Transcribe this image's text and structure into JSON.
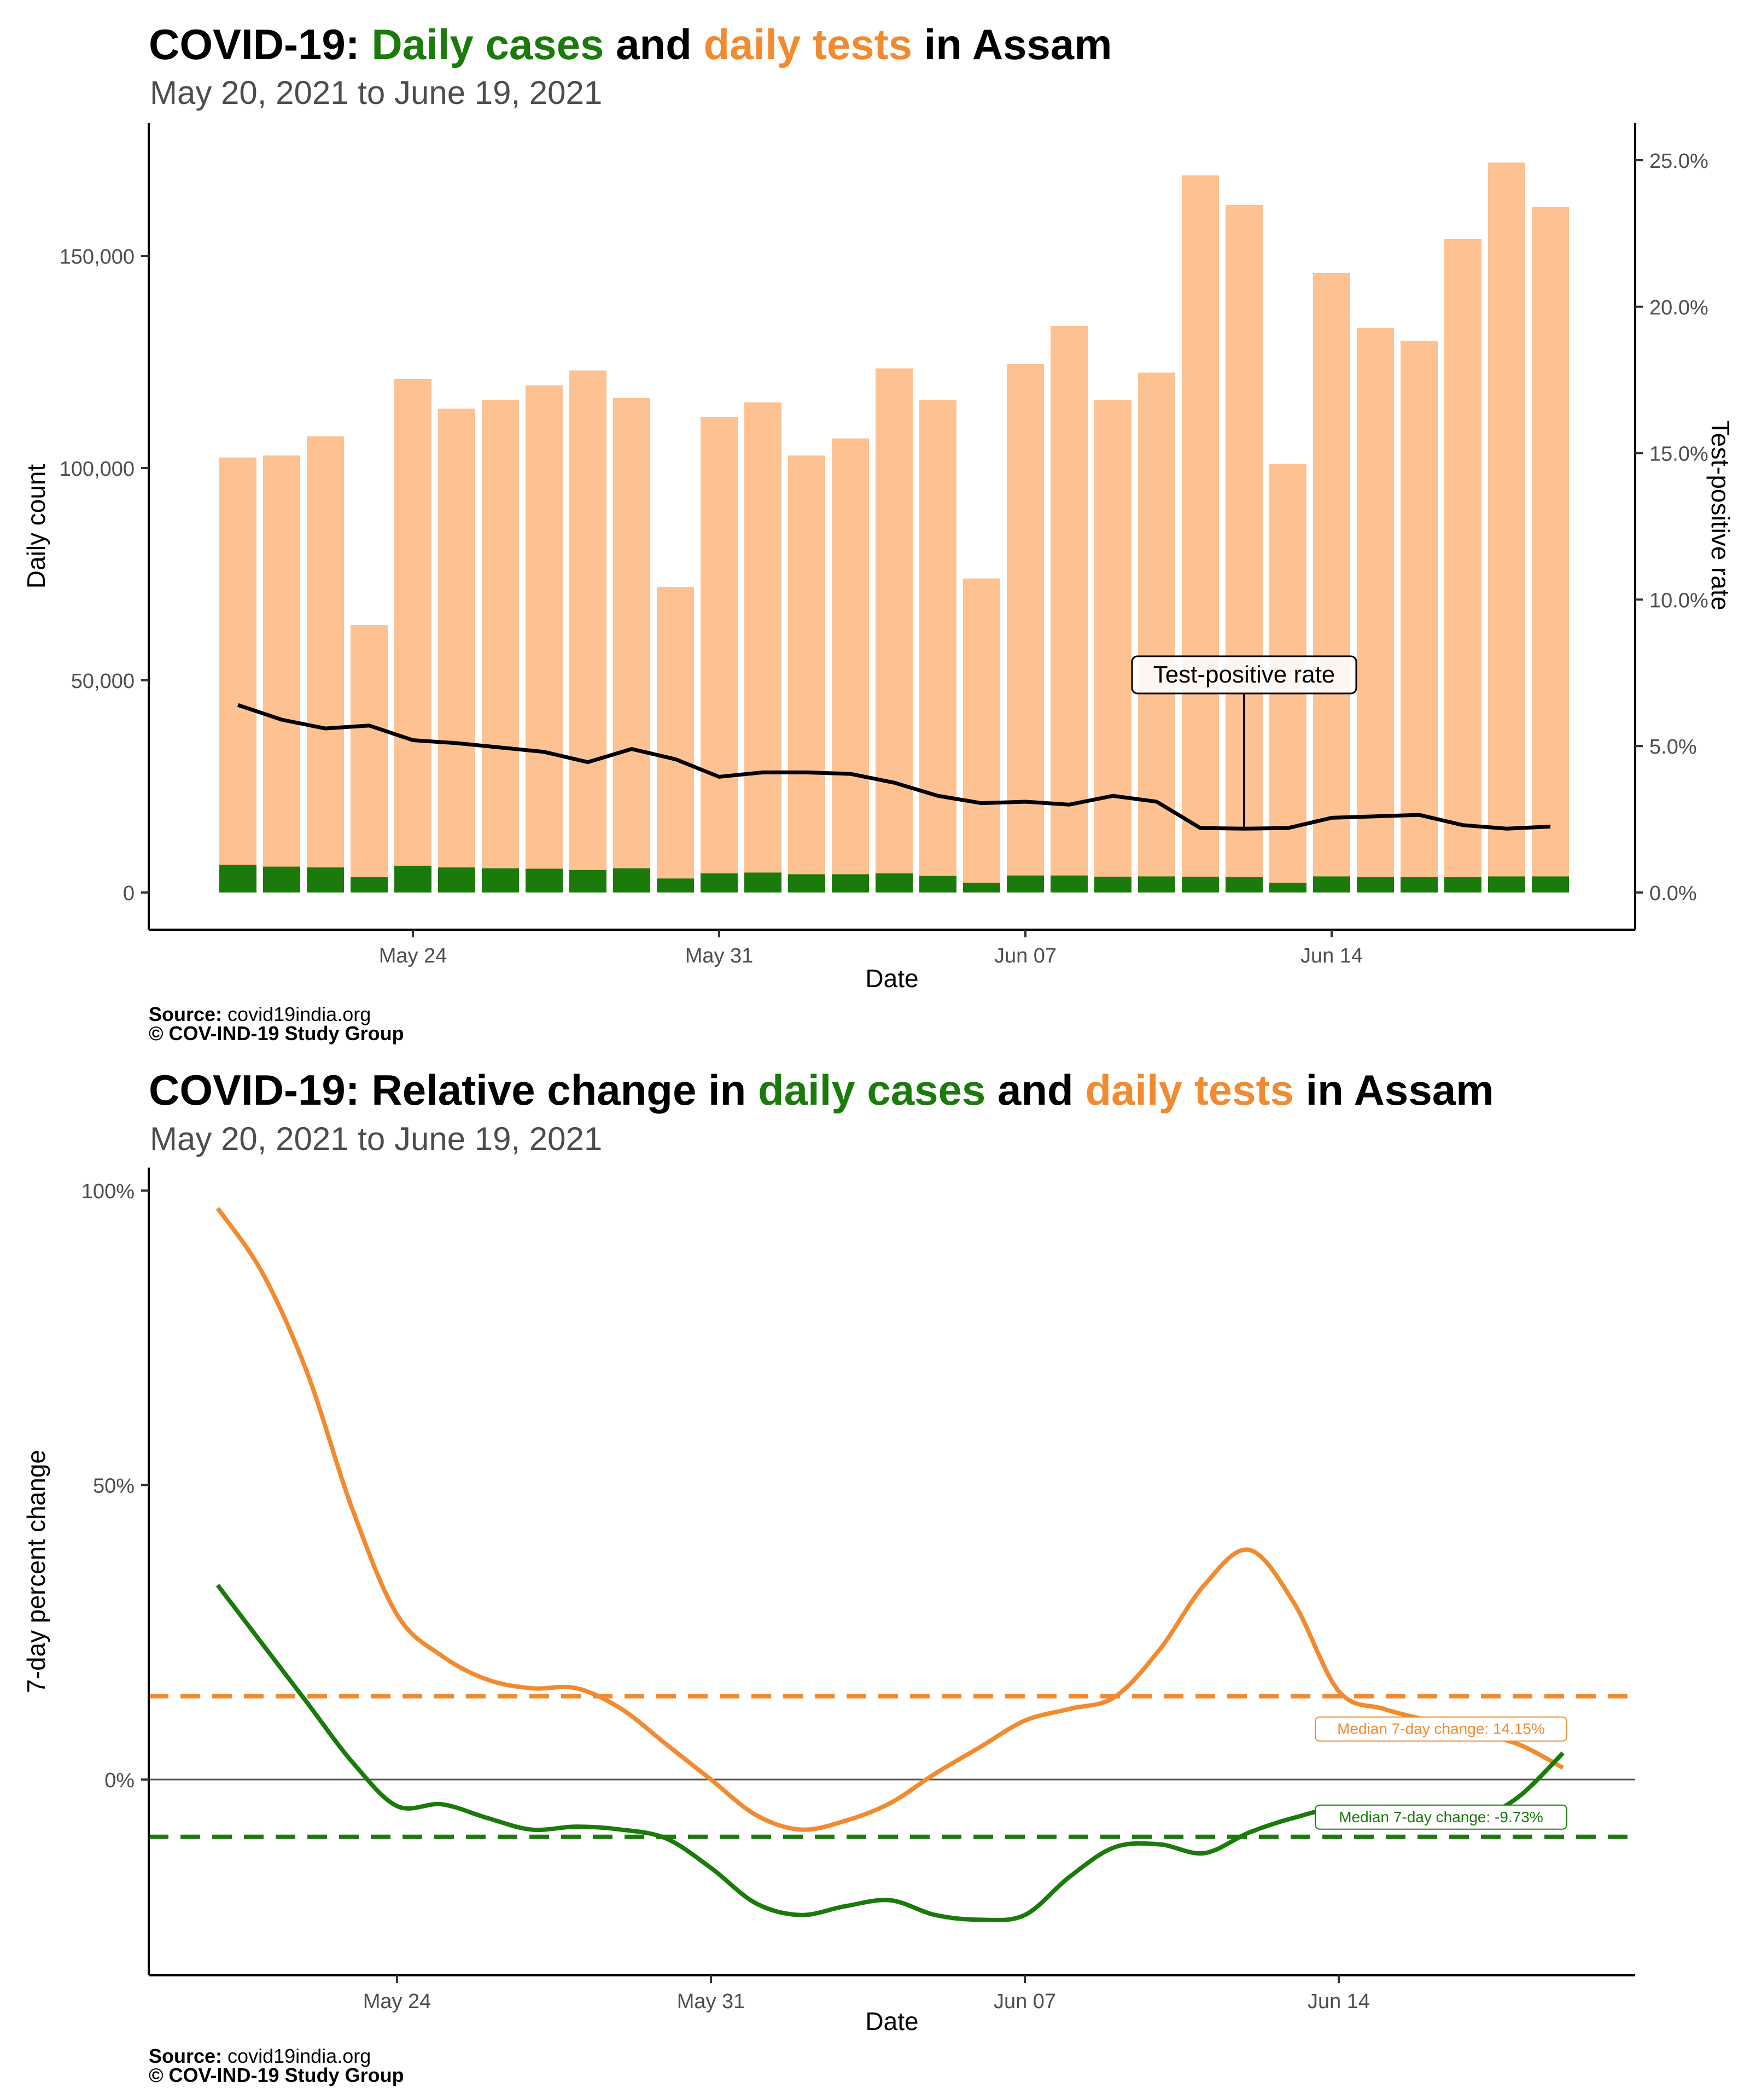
{
  "chart1": {
    "title_prefix": "COVID-19: ",
    "title_cases": "Daily cases",
    "title_mid": " and ",
    "title_tests": "daily tests",
    "title_suffix": " in Assam",
    "subtitle": "May 20, 2021 to June 19, 2021",
    "source_label": "Source:",
    "source_value": " covid19india.org",
    "copyright": "© COV-IND-19 Study Group"
  },
  "chart2": {
    "title_prefix": "COVID-19: Relative change in ",
    "title_cases": "daily cases",
    "title_mid": " and ",
    "title_tests": "daily tests",
    "title_suffix": " in Assam",
    "subtitle": "May 20, 2021 to June 19, 2021",
    "source_label": "Source:",
    "source_value": " covid19india.org",
    "copyright": "© COV-IND-19 Study Group"
  },
  "colors": {
    "cases": "#1a7a0a",
    "tests": "#fdc192",
    "tests_line": "#f28a30",
    "tpr": "#000000"
  },
  "chart_data": [
    {
      "type": "bar",
      "x": [
        "2021-05-20",
        "2021-05-21",
        "2021-05-22",
        "2021-05-23",
        "2021-05-24",
        "2021-05-25",
        "2021-05-26",
        "2021-05-27",
        "2021-05-28",
        "2021-05-29",
        "2021-05-30",
        "2021-05-31",
        "2021-06-01",
        "2021-06-02",
        "2021-06-03",
        "2021-06-04",
        "2021-06-05",
        "2021-06-06",
        "2021-06-07",
        "2021-06-08",
        "2021-06-09",
        "2021-06-10",
        "2021-06-11",
        "2021-06-12",
        "2021-06-13",
        "2021-06-14",
        "2021-06-15",
        "2021-06-16",
        "2021-06-17",
        "2021-06-18",
        "2021-06-19"
      ],
      "series": [
        {
          "values": [
            102500,
            103000,
            107500,
            63000,
            121000,
            114000,
            116000,
            119500,
            123000,
            116500,
            72000,
            112000,
            115500,
            103000,
            107000,
            123500,
            116000,
            74000,
            124500,
            133500,
            116000,
            122500,
            169000,
            162000,
            101000,
            146000,
            133000,
            130000,
            154000,
            172000,
            161500
          ]
        },
        {
          "values": [
            6500,
            6100,
            5900,
            3600,
            6300,
            5900,
            5700,
            5600,
            5300,
            5700,
            3300,
            4500,
            4700,
            4300,
            4300,
            4500,
            3900,
            2300,
            4000,
            4000,
            3700,
            3800,
            3700,
            3600,
            2300,
            3800,
            3600,
            3600,
            3600,
            3800,
            3800
          ]
        },
        {
          "values": [
            6.4,
            5.9,
            5.6,
            5.7,
            5.2,
            5.1,
            4.95,
            4.8,
            4.45,
            4.9,
            4.55,
            3.95,
            4.1,
            4.1,
            4.05,
            3.75,
            3.3,
            3.05,
            3.1,
            3.0,
            3.3,
            3.1,
            2.2,
            2.18,
            2.2,
            2.55,
            2.6,
            2.65,
            2.3,
            2.18,
            2.25
          ]
        }
      ],
      "xlabel": "Date",
      "ylabel": "Daily count",
      "y2label": "Test-positive rate",
      "ylim": [
        0,
        180000
      ],
      "y2lim": [
        0,
        26
      ],
      "yticks": [
        "0",
        "50,000",
        "100,000",
        "150,000"
      ],
      "y2ticks": [
        "0.0%",
        "5.0%",
        "10.0%",
        "15.0%",
        "20.0%",
        "25.0%"
      ],
      "xticks": [
        "May 24",
        "May 31",
        "Jun 07",
        "Jun 14"
      ],
      "annotation": "Test-positive rate",
      "annotation_date": "2021-06-12",
      "grid": false
    },
    {
      "type": "line",
      "x": [
        "2021-05-20",
        "2021-05-21",
        "2021-05-22",
        "2021-05-23",
        "2021-05-24",
        "2021-05-25",
        "2021-05-26",
        "2021-05-27",
        "2021-05-28",
        "2021-05-29",
        "2021-05-30",
        "2021-05-31",
        "2021-06-01",
        "2021-06-02",
        "2021-06-03",
        "2021-06-04",
        "2021-06-05",
        "2021-06-06",
        "2021-06-07",
        "2021-06-08",
        "2021-06-09",
        "2021-06-10",
        "2021-06-11",
        "2021-06-12",
        "2021-06-13",
        "2021-06-14",
        "2021-06-15",
        "2021-06-16",
        "2021-06-17",
        "2021-06-18",
        "2021-06-19"
      ],
      "series": [
        {
          "values": [
            97,
            86,
            69,
            46,
            28,
            21,
            17,
            15.5,
            15.5,
            12,
            6,
            0,
            -6,
            -8.5,
            -7,
            -4,
            1,
            5.5,
            10,
            12,
            14,
            22,
            33,
            39,
            30,
            15,
            12,
            10,
            8,
            6,
            2
          ]
        },
        {
          "values": [
            33,
            23,
            13,
            3,
            -4.5,
            -4.2,
            -6.5,
            -8.5,
            -8,
            -8.5,
            -10,
            -15,
            -21,
            -23,
            -21.5,
            -20.5,
            -23,
            -23.8,
            -23,
            -16.5,
            -11.5,
            -11,
            -12.5,
            -9,
            -6.5,
            -5,
            -7.5,
            -8,
            -7,
            -3,
            4.5
          ]
        }
      ],
      "xlabel": "Date",
      "ylabel": "7-day percent change",
      "ylim": [
        -26,
        102
      ],
      "yticks": [
        "0%",
        "50%",
        "100%"
      ],
      "xticks": [
        "May 24",
        "May 31",
        "Jun 07",
        "Jun 14"
      ],
      "reference_lines": [
        {
          "value": 14.15,
          "label": "Median 7-day change: 14.15%"
        },
        {
          "value": -9.73,
          "label": "Median 7-day change: -9.73%"
        }
      ],
      "grid": false
    }
  ]
}
